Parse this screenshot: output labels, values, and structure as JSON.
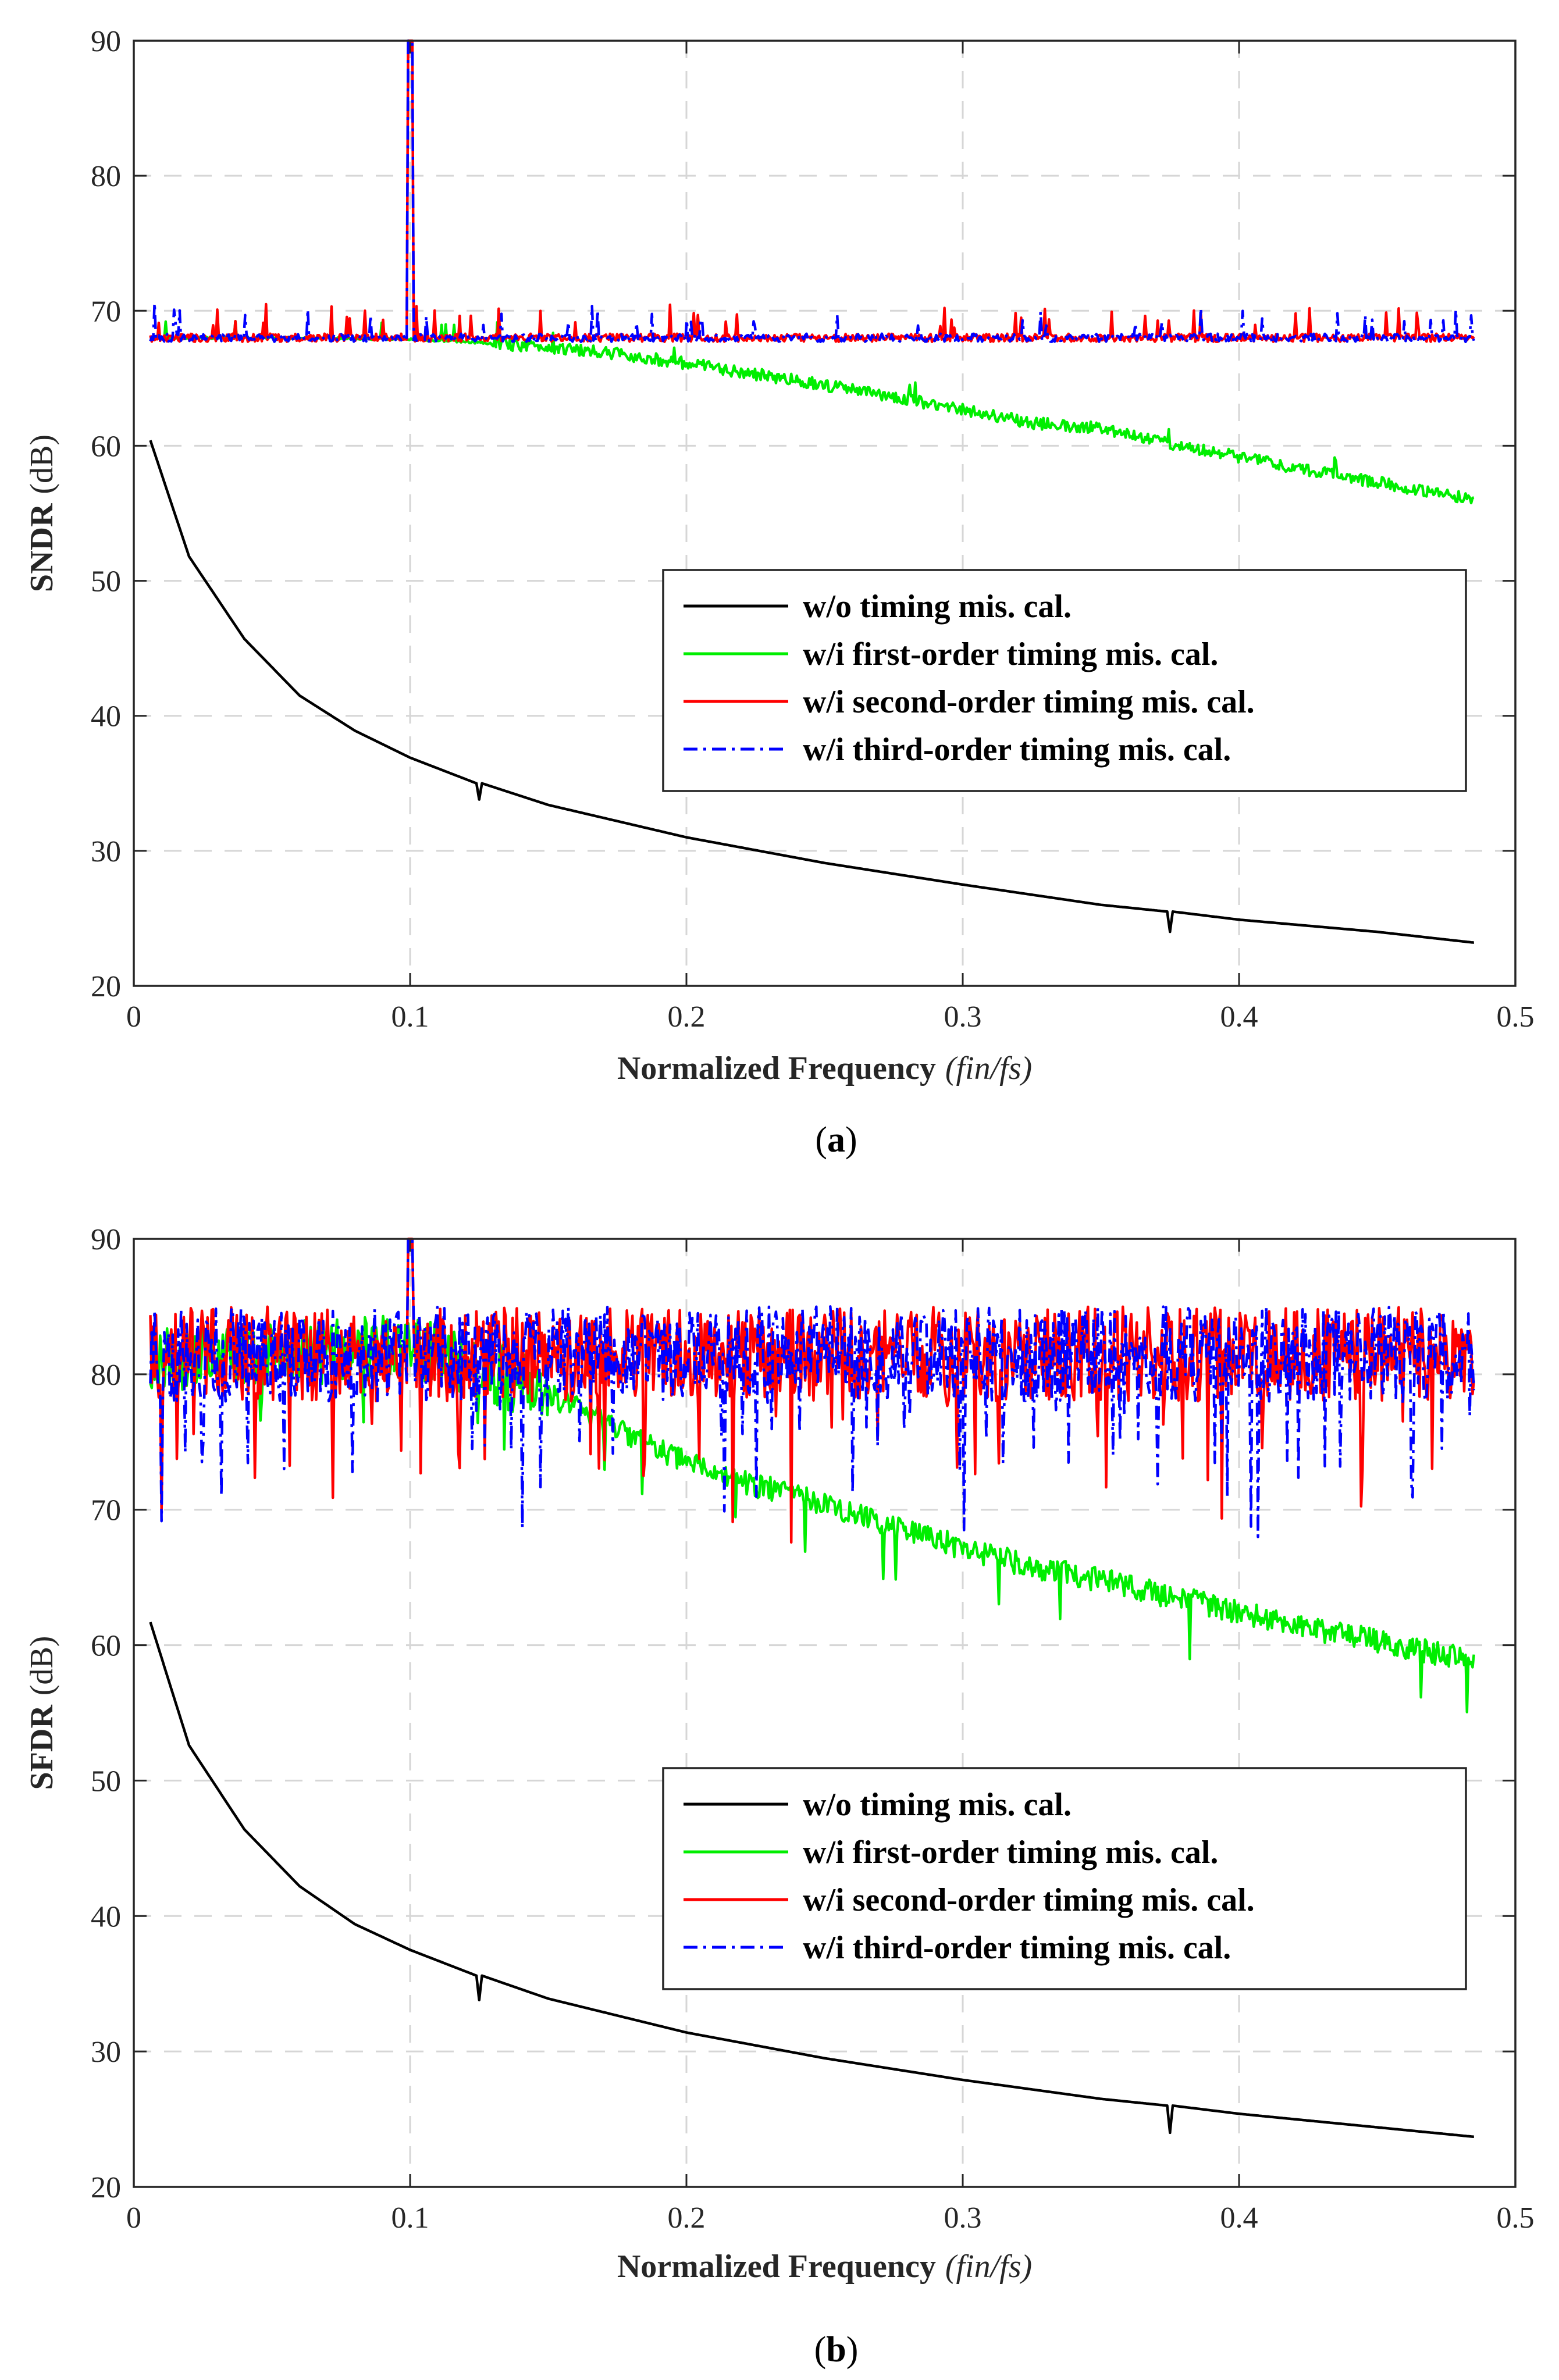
{
  "chart_data": [
    {
      "type": "line",
      "panel": "(a)",
      "caption_open": "(",
      "caption_letter": "a",
      "caption_close": ")",
      "ylabel_main": "SNDR",
      "ylabel_unit": "(dB)",
      "xlabel_main": "Normalized Frequency",
      "xlabel_unit": "(fin/fs)",
      "xlim": [
        0,
        0.5
      ],
      "ylim": [
        20,
        90
      ],
      "xticks": [
        "0",
        "0.1",
        "0.2",
        "0.3",
        "0.4",
        "0.5"
      ],
      "yticks": [
        "20",
        "30",
        "40",
        "50",
        "60",
        "70",
        "80",
        "90"
      ],
      "grid": true,
      "legend_position": "center-right",
      "series": [
        {
          "name": "w/o timing mis. cal.",
          "color": "#000000",
          "style": "solid",
          "x": [
            0.006,
            0.02,
            0.04,
            0.06,
            0.08,
            0.1,
            0.124,
            0.125,
            0.126,
            0.15,
            0.2,
            0.25,
            0.3,
            0.35,
            0.374,
            0.375,
            0.376,
            0.4,
            0.45,
            0.485
          ],
          "y": [
            60.4,
            51.8,
            45.7,
            41.5,
            38.9,
            36.9,
            35.0,
            33.8,
            35.0,
            33.4,
            31.0,
            29.1,
            27.5,
            26.0,
            25.5,
            24.0,
            25.5,
            24.9,
            24.0,
            23.2
          ]
        },
        {
          "name": "w/i first-order timing mis. cal.",
          "color": "#00ee00",
          "style": "solid",
          "x": [
            0.006,
            0.05,
            0.1,
            0.12,
            0.15,
            0.175,
            0.2,
            0.225,
            0.25,
            0.275,
            0.3,
            0.325,
            0.35,
            0.375,
            0.4,
            0.425,
            0.45,
            0.485
          ],
          "y": [
            68.0,
            68.0,
            67.9,
            67.7,
            67.3,
            66.8,
            66.1,
            65.3,
            64.5,
            63.6,
            62.7,
            61.7,
            61.3,
            60.2,
            59.2,
            58.2,
            57.3,
            56.0
          ]
        },
        {
          "name": "w/i second-order timing mis. cal.",
          "color": "#ff0000",
          "style": "solid",
          "base": 68.0,
          "peak_x": 0.1,
          "peak_y": 90
        },
        {
          "name": "w/i third-order timing mis. cal.",
          "color": "#0000ff",
          "style": "dash-dot",
          "base": 68.0,
          "peak_x": 0.1,
          "peak_y": 90
        }
      ]
    },
    {
      "type": "line",
      "panel": "(b)",
      "caption_open": "(",
      "caption_letter": "b",
      "caption_close": ")",
      "ylabel_main": "SFDR",
      "ylabel_unit": "(dB)",
      "xlabel_main": "Normalized Frequency",
      "xlabel_unit": "(fin/fs)",
      "xlim": [
        0,
        0.5
      ],
      "ylim": [
        20,
        90
      ],
      "xticks": [
        "0",
        "0.1",
        "0.2",
        "0.3",
        "0.4",
        "0.5"
      ],
      "yticks": [
        "20",
        "30",
        "40",
        "50",
        "60",
        "70",
        "80",
        "90"
      ],
      "grid": true,
      "legend_position": "center-right",
      "series": [
        {
          "name": "w/o timing mis. cal.",
          "color": "#000000",
          "style": "solid",
          "x": [
            0.006,
            0.02,
            0.04,
            0.06,
            0.08,
            0.1,
            0.124,
            0.125,
            0.126,
            0.15,
            0.2,
            0.25,
            0.3,
            0.35,
            0.374,
            0.375,
            0.376,
            0.4,
            0.45,
            0.485
          ],
          "y": [
            61.7,
            52.6,
            46.4,
            42.2,
            39.4,
            37.5,
            35.6,
            33.8,
            35.6,
            33.9,
            31.4,
            29.5,
            27.9,
            26.5,
            26.0,
            24.0,
            26.0,
            25.4,
            24.4,
            23.7
          ]
        },
        {
          "name": "w/i first-order timing mis. cal.",
          "color": "#00ee00",
          "style": "solid",
          "x": [
            0.006,
            0.05,
            0.1,
            0.125,
            0.15,
            0.175,
            0.2,
            0.225,
            0.25,
            0.275,
            0.3,
            0.325,
            0.35,
            0.375,
            0.4,
            0.425,
            0.45,
            0.485
          ],
          "y": [
            81.0,
            81.5,
            82.0,
            80.5,
            78.5,
            76.0,
            73.5,
            71.8,
            70.5,
            68.8,
            67.2,
            65.8,
            64.8,
            63.6,
            62.5,
            61.3,
            60.3,
            58.8
          ]
        },
        {
          "name": "w/i second-order timing mis. cal.",
          "color": "#ff0000",
          "style": "solid",
          "base": 81.5,
          "peak_x": 0.1,
          "peak_y": 90
        },
        {
          "name": "w/i third-order timing mis. cal.",
          "color": "#0000ff",
          "style": "dash-dot",
          "base": 81.5,
          "peak_x": 0.1,
          "peak_y": 90
        }
      ]
    }
  ]
}
